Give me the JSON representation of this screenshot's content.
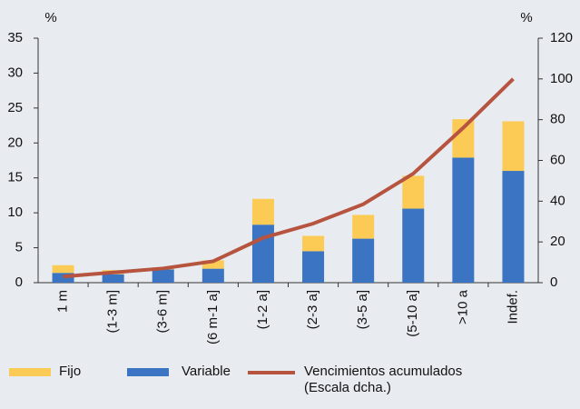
{
  "chart_data": {
    "type": "bar-line",
    "y_label": "%",
    "y2_label": "%",
    "categories": [
      "1 m",
      "(1-3 m]",
      "(3-6 m]",
      "(6 m-1 a]",
      "(1-2 a]",
      "(2-3 a]",
      "(3-5 a]",
      "(5-10 a]",
      ">10 a",
      "Indef."
    ],
    "series": [
      {
        "name": "Fijo",
        "color": "#fccb55",
        "stack": true,
        "values": [
          1.1,
          0.6,
          0.3,
          1.2,
          3.7,
          2.2,
          3.4,
          4.7,
          5.5,
          7.1
        ]
      },
      {
        "name": "Variable",
        "color": "#3a74c2",
        "stack": true,
        "values": [
          1.4,
          1.2,
          1.9,
          2.0,
          8.3,
          4.5,
          6.3,
          10.6,
          17.9,
          16.0
        ]
      },
      {
        "name": "Vencimientos acumulados (Escala dcha.)",
        "color": "#b65440",
        "axis": "y2",
        "values": [
          3,
          5,
          7,
          10.5,
          22,
          29,
          38.5,
          53.5,
          76,
          100
        ]
      }
    ],
    "ylim": [
      0,
      35
    ],
    "yticks": [
      0,
      5,
      10,
      15,
      20,
      25,
      30,
      35
    ],
    "y2lim": [
      0,
      120
    ],
    "y2ticks": [
      0,
      20,
      40,
      60,
      80,
      100,
      120
    ]
  }
}
